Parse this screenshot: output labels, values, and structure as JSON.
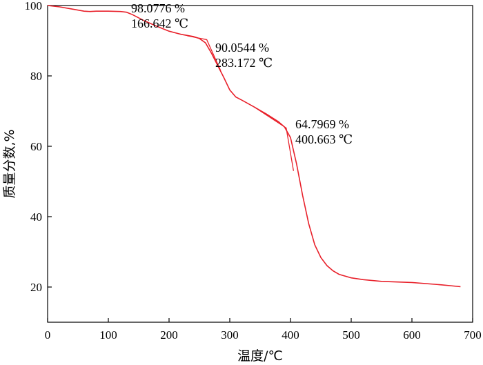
{
  "chart_data": {
    "type": "line",
    "title": "",
    "xlabel": "温度/℃",
    "ylabel": "质量分数,%",
    "xlim": [
      0,
      700
    ],
    "ylim": [
      10,
      100
    ],
    "xticks": [
      0,
      100,
      200,
      300,
      400,
      500,
      600,
      700
    ],
    "yticks": [
      20,
      40,
      60,
      80,
      100
    ],
    "grid": false,
    "color": "#e8202a",
    "series": [
      {
        "x": [
          0,
          20,
          40,
          60,
          70,
          80,
          100,
          120,
          130,
          140,
          160,
          180,
          200,
          220,
          240,
          250,
          260,
          270,
          280,
          290,
          300,
          310,
          320,
          340,
          360,
          380,
          390,
          400,
          410,
          420,
          430,
          440,
          450,
          460,
          470,
          480,
          500,
          520,
          550,
          600,
          650,
          680
        ],
        "y": [
          100,
          99.6,
          99.0,
          98.4,
          98.3,
          98.4,
          98.4,
          98.3,
          98.1,
          97.4,
          95.6,
          94.1,
          92.7,
          91.8,
          91.2,
          90.6,
          89.4,
          86.4,
          83.0,
          79.6,
          76.0,
          74.0,
          73.1,
          71.2,
          69.2,
          67.0,
          65.5,
          62.5,
          55.0,
          46.0,
          38.0,
          32.0,
          28.4,
          26.1,
          24.6,
          23.6,
          22.6,
          22.1,
          21.6,
          21.3,
          20.6,
          20.1
        ]
      }
    ],
    "annotations": [
      {
        "line1": "98.0776 %",
        "line2": "166.642 ℃"
      },
      {
        "line1": "90.0544 %",
        "line2": "283.172 ℃"
      },
      {
        "line1": "64.7969 %",
        "line2": "400.663 ℃"
      }
    ]
  }
}
